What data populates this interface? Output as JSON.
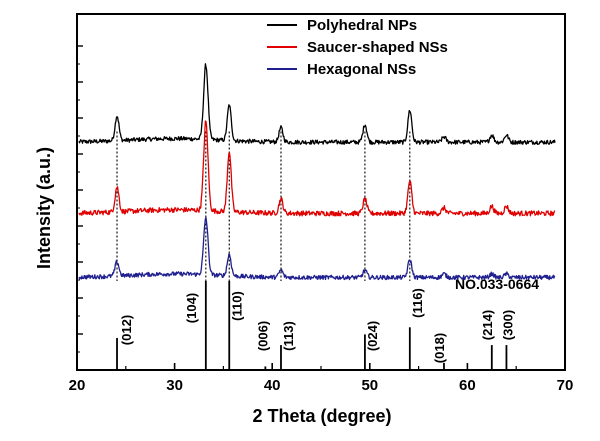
{
  "chart_data": {
    "type": "line",
    "xlabel": "2 Theta (degree)",
    "ylabel": "Intensity (a.u.)",
    "xlim": [
      20,
      70
    ],
    "xticks": [
      "20",
      "30",
      "40",
      "50",
      "60",
      "70"
    ],
    "legend_position": "top-right",
    "series": [
      {
        "name": "Polyhedral NPs",
        "color": "#000000",
        "baseline": 0.64,
        "noise": 0.006
      },
      {
        "name": "Saucer-shaped NSs",
        "color": "#e00000",
        "baseline": 0.44,
        "noise": 0.007
      },
      {
        "name": "Hexagonal NSs",
        "color": "#1f1f8f",
        "baseline": 0.26,
        "noise": 0.006
      }
    ],
    "peak_positions": [
      24.1,
      33.2,
      35.6,
      40.9,
      49.5,
      54.1,
      57.6,
      62.5,
      64.0
    ],
    "peak_heights": {
      "Polyhedral NPs": [
        0.07,
        0.21,
        0.1,
        0.04,
        0.05,
        0.09,
        0.015,
        0.02,
        0.02
      ],
      "Saucer-shaped NSs": [
        0.07,
        0.25,
        0.17,
        0.04,
        0.04,
        0.09,
        0.015,
        0.02,
        0.02
      ],
      "Hexagonal NSs": [
        0.04,
        0.16,
        0.06,
        0.02,
        0.02,
        0.05,
        0.01,
        0.01,
        0.01
      ]
    },
    "reference": {
      "label": "NO.033-0664",
      "lines": [
        {
          "x": 24.1,
          "intensity": 0.09,
          "hkl": "(012)"
        },
        {
          "x": 33.2,
          "intensity": 0.25,
          "hkl": "(104)"
        },
        {
          "x": 35.6,
          "intensity": 0.25,
          "hkl": "(110)"
        },
        {
          "x": 39.3,
          "intensity": 0.01,
          "hkl": "(006)"
        },
        {
          "x": 40.9,
          "intensity": 0.07,
          "hkl": "(113)"
        },
        {
          "x": 49.5,
          "intensity": 0.1,
          "hkl": "(024)"
        },
        {
          "x": 54.1,
          "intensity": 0.12,
          "hkl": "(116)"
        },
        {
          "x": 57.6,
          "intensity": 0.02,
          "hkl": "(018)"
        },
        {
          "x": 62.5,
          "intensity": 0.07,
          "hkl": "(214)"
        },
        {
          "x": 64.0,
          "intensity": 0.07,
          "hkl": "(300)"
        }
      ]
    },
    "dashed_guides_at": [
      24.1,
      33.2,
      35.6,
      40.9,
      49.5,
      54.1
    ]
  }
}
